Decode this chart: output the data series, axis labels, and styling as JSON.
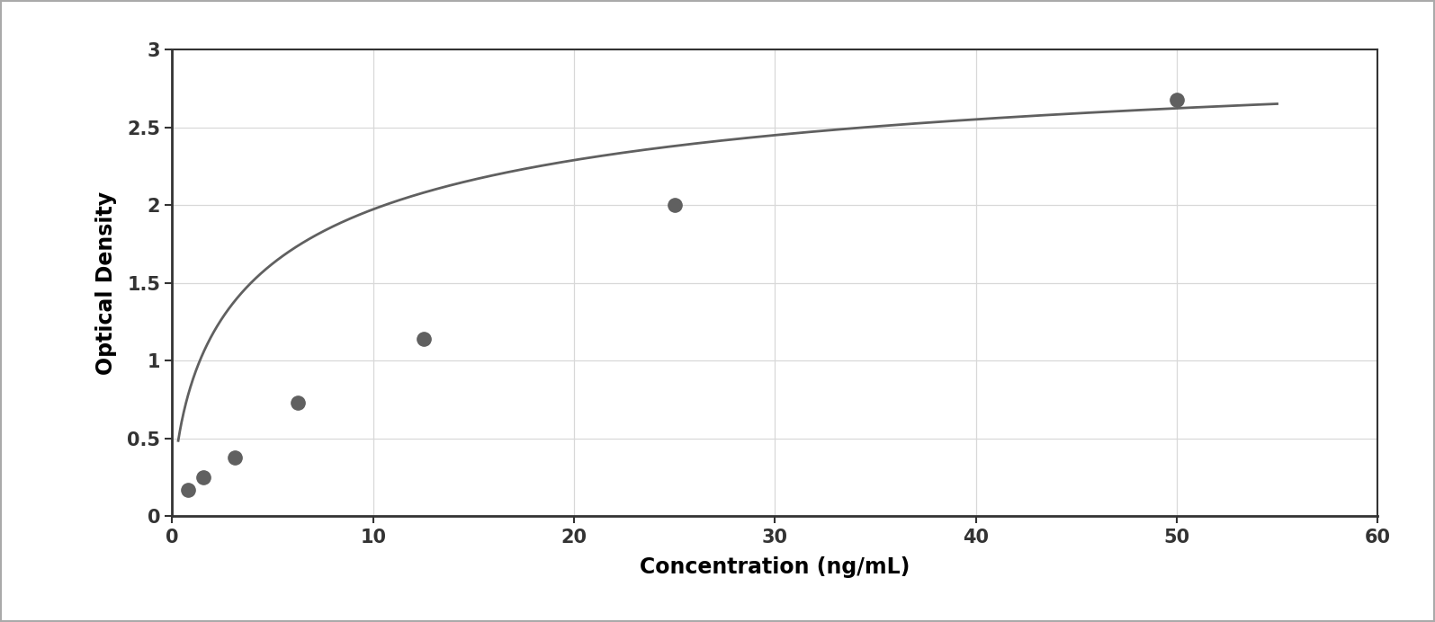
{
  "x_data": [
    0.78,
    1.56,
    3.13,
    6.25,
    12.5,
    25.0,
    50.0
  ],
  "y_data": [
    0.17,
    0.25,
    0.38,
    0.73,
    1.14,
    2.0,
    2.68
  ],
  "xlim": [
    0,
    60
  ],
  "ylim": [
    0,
    3
  ],
  "xticks": [
    0,
    10,
    20,
    30,
    40,
    50,
    60
  ],
  "yticks": [
    0,
    0.5,
    1.0,
    1.5,
    2.0,
    2.5,
    3.0
  ],
  "xlabel": "Concentration (ng/mL)",
  "ylabel": "Optical Density",
  "point_color": "#606060",
  "line_color": "#606060",
  "grid_color": "#d8d8d8",
  "plot_bg_color": "#ffffff",
  "fig_bg_color": "#ffffff",
  "outer_border_color": "#aaaaaa",
  "spine_color": "#333333",
  "xlabel_fontsize": 17,
  "ylabel_fontsize": 17,
  "tick_fontsize": 15,
  "marker_size": 11,
  "line_width": 2.0,
  "curve_x_start": 0.3,
  "curve_x_end": 55.0
}
